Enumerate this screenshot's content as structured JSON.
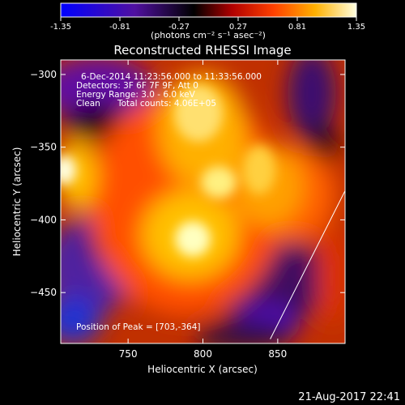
{
  "colorbar": {
    "ticks": [
      "-1.35",
      "-0.81",
      "-0.27",
      "0.27",
      "0.81",
      "1.35"
    ],
    "tick_values": [
      -1.35,
      -0.81,
      -0.27,
      0.27,
      0.81,
      1.35
    ],
    "unit_label": "(photons cm⁻² s⁻¹ asec⁻²)",
    "range": [
      -1.35,
      1.35
    ]
  },
  "chart_data": {
    "type": "heatmap",
    "title": "Reconstructed RHESSI Image",
    "xlabel": "Heliocentric X (arcsec)",
    "ylabel": "Heliocentric Y (arcsec)",
    "xlim": [
      705,
      895
    ],
    "ylim": [
      -485,
      -290
    ],
    "x_ticks": [
      750,
      800,
      850
    ],
    "y_ticks": [
      -300,
      -350,
      -400,
      -450
    ],
    "x_tick_labels": [
      "750",
      "800",
      "850"
    ],
    "y_tick_labels": [
      "−300",
      "−350",
      "−400",
      "−450"
    ],
    "peak_position": [
      703,
      -364
    ],
    "limb_line": [
      [
        845,
        -482
      ],
      [
        895,
        -380
      ]
    ]
  },
  "annotations": {
    "line1": "6-Dec-2014 11:23:56.000 to 11:33:56.000",
    "line2": "Detectors: 3F 6F 7F 9F, Att 0",
    "line3": "Energy Range: 3.0 - 6.0 keV",
    "line4a": "Clean",
    "line4b": "Total counts: 4.06E+05",
    "peak": "Position of Peak = [703,-364]"
  },
  "footer": {
    "timestamp": "21-Aug-2017 22:41"
  }
}
